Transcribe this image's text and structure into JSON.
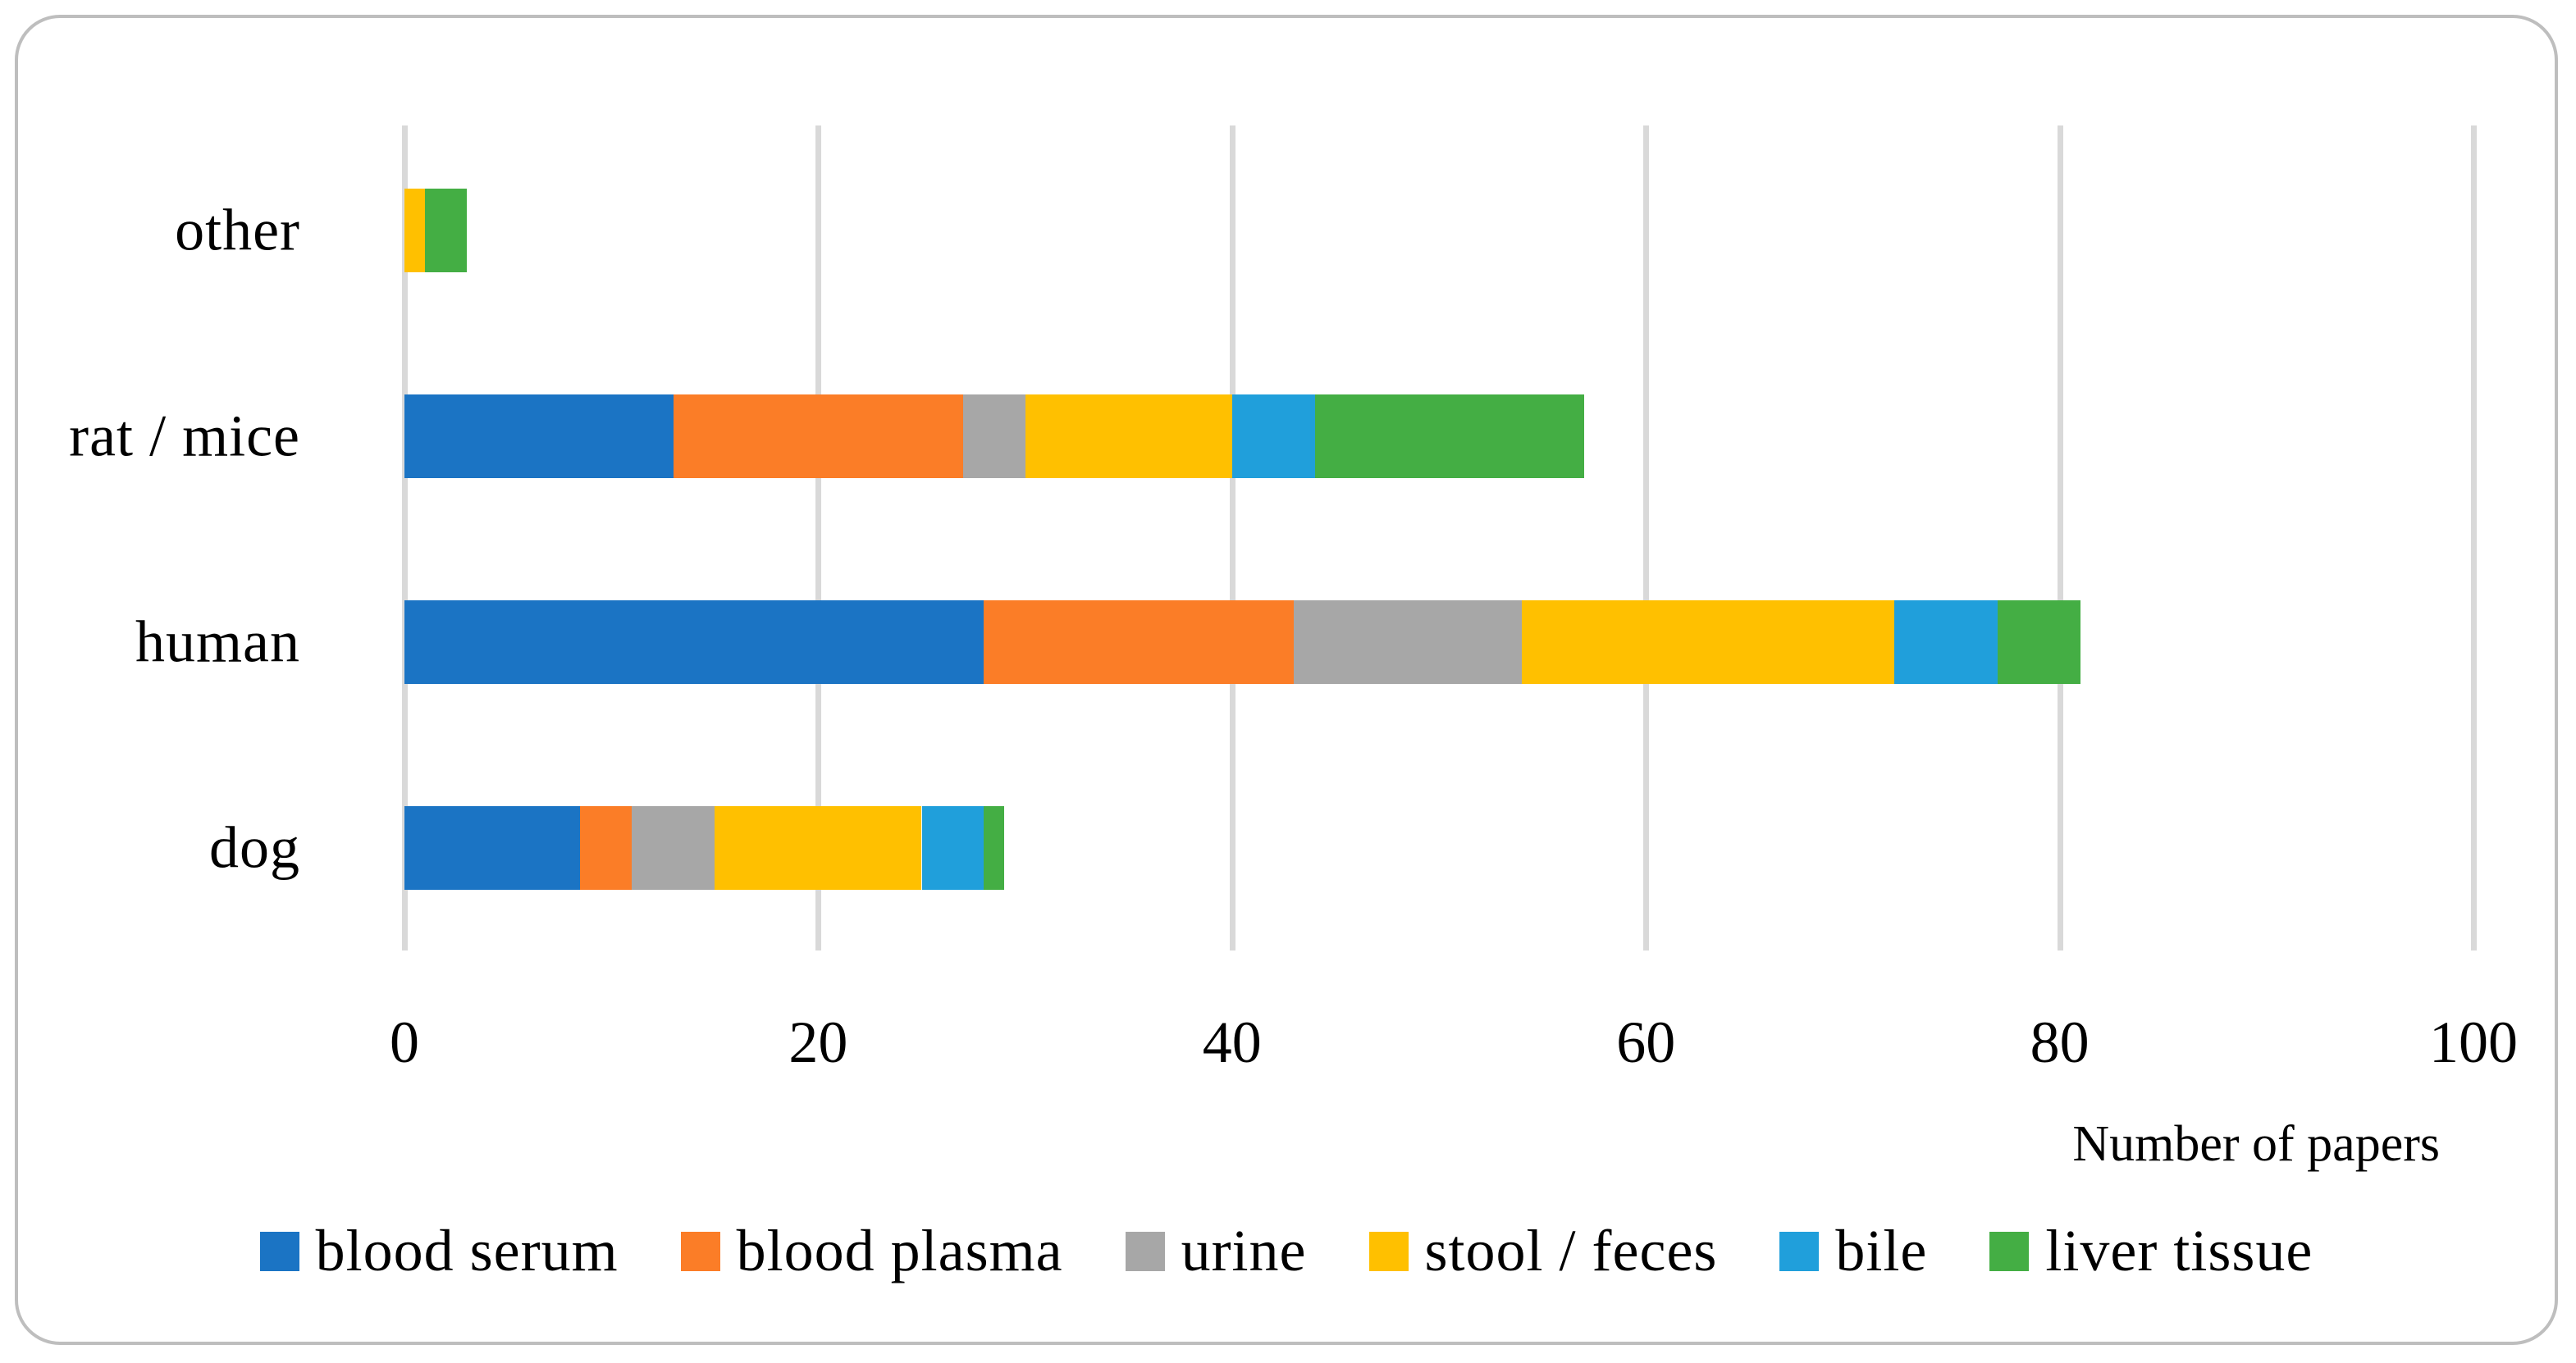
{
  "figure": {
    "background_color": "#FFFFFF",
    "border_color": "#BEBEBE"
  },
  "chart_data": {
    "type": "bar",
    "orientation": "horizontal",
    "stacked": true,
    "title": "",
    "xlabel": "Number of papers",
    "xlim": [
      0,
      100
    ],
    "xticks": [
      0,
      20,
      40,
      60,
      80,
      100
    ],
    "grid": true,
    "gridline_color": "#D9D9D9",
    "legend_position": "bottom",
    "categories": [
      "other",
      "rat / mice",
      "human",
      "dog"
    ],
    "series": [
      {
        "name": "blood serum",
        "color": "#1B74C4",
        "values": [
          0,
          13,
          28,
          8.5
        ]
      },
      {
        "name": "blood plasma",
        "color": "#FB7D27",
        "values": [
          0,
          14,
          15,
          2.5
        ]
      },
      {
        "name": "urine",
        "color": "#A7A7A7",
        "values": [
          0,
          3,
          11,
          4
        ]
      },
      {
        "name": "stool / feces",
        "color": "#FFC000",
        "values": [
          1,
          10,
          18,
          10
        ]
      },
      {
        "name": "bile",
        "color": "#209FDB",
        "values": [
          0,
          4,
          5,
          3
        ]
      },
      {
        "name": "liver tissue",
        "color": "#44AE44",
        "values": [
          2,
          13,
          4,
          1
        ]
      }
    ]
  }
}
